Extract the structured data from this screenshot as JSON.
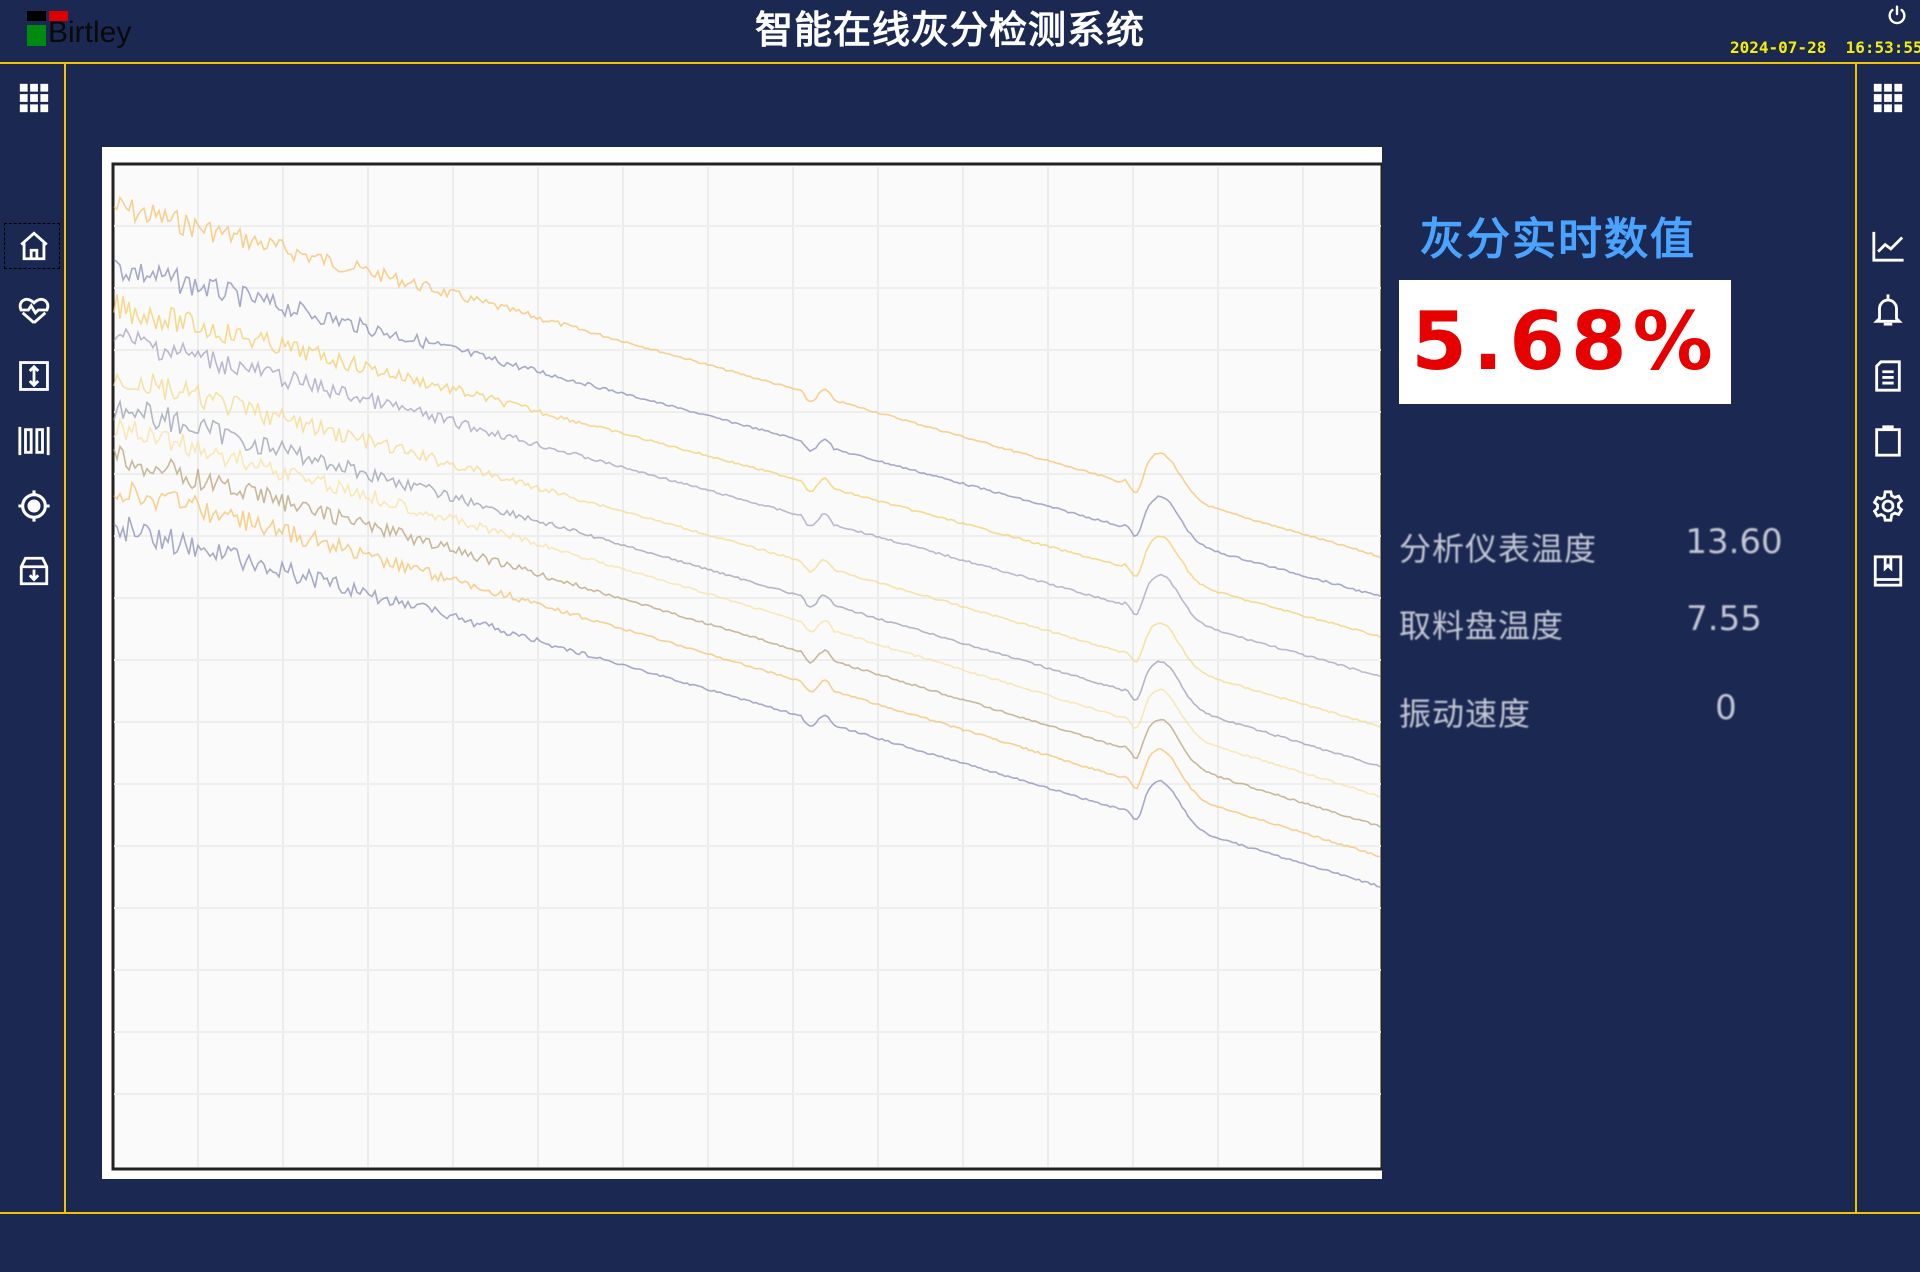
{
  "header": {
    "logo_text": "Birtley",
    "title": "智能在线灰分检测系统",
    "datetime": "2024-07-28  16:53:55",
    "power_icon": "power-icon"
  },
  "left_sidebar": {
    "items": [
      {
        "icon": "grid-menu-icon"
      },
      {
        "icon": "home-icon",
        "selected": true
      },
      {
        "icon": "heart-pulse-icon"
      },
      {
        "icon": "vertical-resize-icon"
      },
      {
        "icon": "barcode-icon"
      },
      {
        "icon": "target-icon"
      },
      {
        "icon": "archive-download-icon"
      }
    ]
  },
  "right_sidebar": {
    "items": [
      {
        "icon": "grid-menu-icon"
      },
      {
        "icon": "line-chart-icon"
      },
      {
        "icon": "bell-icon"
      },
      {
        "icon": "document-icon"
      },
      {
        "icon": "clipboard-icon"
      },
      {
        "icon": "gear-icon"
      },
      {
        "icon": "book-icon"
      }
    ]
  },
  "realtime": {
    "title": "灰分实时数值",
    "ash_value": "5.68%",
    "value_color": "#e60000",
    "title_color": "#4aa3ff"
  },
  "stats": [
    {
      "label": "分析仪表温度",
      "value": "13.60"
    },
    {
      "label": "取料盘温度",
      "value": "7.55"
    },
    {
      "label": "振动速度",
      "value": "0"
    }
  ],
  "spectrum_colors": [
    "#f5c26b",
    "#8a8fb8",
    "#f3cf6a",
    "#a7a2c0",
    "#f6d98a",
    "#9aa0b0",
    "#f8e2a0",
    "#b9a27a"
  ],
  "theme": {
    "background": "#1a2852",
    "border": "#f2c200",
    "datetime": "#f6f000"
  }
}
